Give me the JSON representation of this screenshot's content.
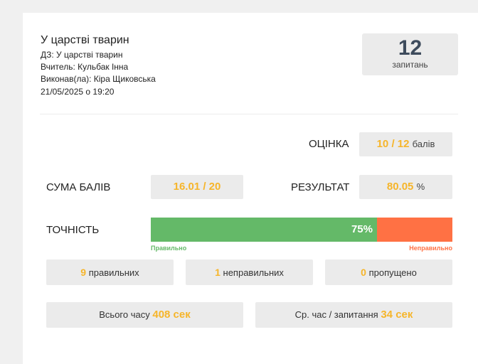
{
  "header": {
    "title": "У царстві тварин",
    "homework": "ДЗ: У царстві тварин",
    "teacher": "Вчитель: Кульбак Інна",
    "performer": "Виконав(ла): Кіра Щиковська",
    "datetime": "21/05/2025 о 19:20"
  },
  "questions": {
    "count": "12",
    "label": "запитань"
  },
  "grade": {
    "label": "ОЦІНКА",
    "value": "10 / 12",
    "unit": "балів"
  },
  "score_sum": {
    "label": "СУМА БАЛІВ",
    "value": "16.01 / 20"
  },
  "result": {
    "label": "РЕЗУЛЬТАТ",
    "value": "80.05",
    "unit": "%"
  },
  "accuracy": {
    "label": "ТОЧНІСТЬ",
    "percent_text": "75%",
    "percent": 75,
    "correct_legend": "Правильно",
    "incorrect_legend": "Неправильно"
  },
  "stats": {
    "correct_count": "9",
    "correct_label": "правильних",
    "incorrect_count": "1",
    "incorrect_label": "неправильних",
    "skipped_count": "0",
    "skipped_label": "пропущено"
  },
  "time": {
    "total_label": "Всього часу",
    "total_value": "408 сек",
    "avg_label": "Ср. час / запитання",
    "avg_value": "34 сек"
  },
  "colors": {
    "accent": "#f6b52a",
    "correct": "#64b968",
    "incorrect": "#ff7144",
    "question_count": "#3d4b5c"
  }
}
